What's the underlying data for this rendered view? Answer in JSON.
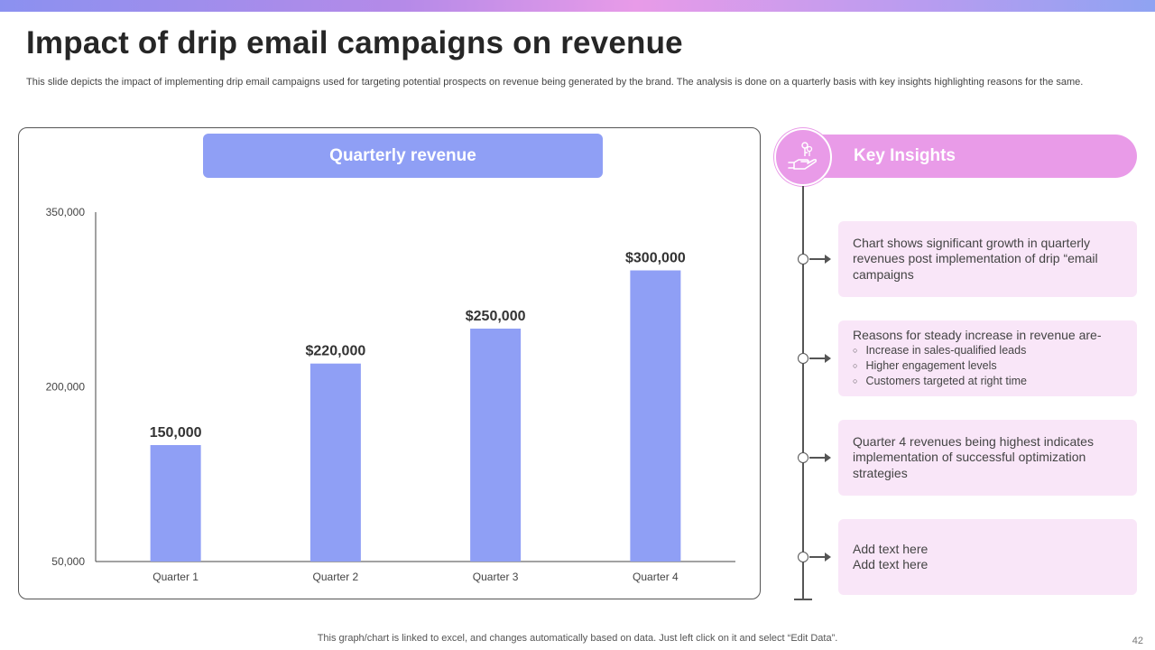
{
  "slide": {
    "title": "Impact of drip email campaigns on revenue",
    "subtitle": "This slide depicts the impact of implementing drip email campaigns used for targeting potential prospects on revenue being generated by the brand. The analysis is done on a quarterly basis with key insights highlighting reasons for the same.",
    "footer": "This graph/chart is linked to excel, and changes automatically based on data. Just left click on it and select “Edit Data”.",
    "page_number": "42"
  },
  "colors": {
    "bar": "#8f9ff5",
    "accent_pink": "#e99be8",
    "card_bg": "#f9e6f8"
  },
  "chart_data": {
    "type": "bar",
    "title": "Quarterly revenue",
    "categories": [
      "Quarter 1",
      "Quarter 2",
      "Quarter 3",
      "Quarter 4"
    ],
    "values": [
      150000,
      220000,
      250000,
      300000
    ],
    "data_labels": [
      "150,000",
      "$220,000",
      "$250,000",
      "$300,000"
    ],
    "ylim": [
      50000,
      350000
    ],
    "yticks": [
      50000,
      200000,
      350000
    ],
    "ytick_labels": [
      "50,000",
      "200,000",
      "350,000"
    ],
    "xlabel": "",
    "ylabel": "",
    "grid": false
  },
  "insights": {
    "header": "Key Insights",
    "icon": "hand-with-keys-icon",
    "cards": [
      {
        "text": "Chart shows significant growth in quarterly revenues post implementation of drip “email campaigns"
      },
      {
        "text": "Reasons for steady increase in revenue are-",
        "bullets": [
          "Increase in sales-qualified leads",
          "Higher engagement levels",
          "Customers targeted at right time"
        ]
      },
      {
        "text": "Quarter 4 revenues being highest indicates implementation of successful optimization strategies"
      },
      {
        "text": "Add text here\nAdd text here"
      }
    ]
  }
}
